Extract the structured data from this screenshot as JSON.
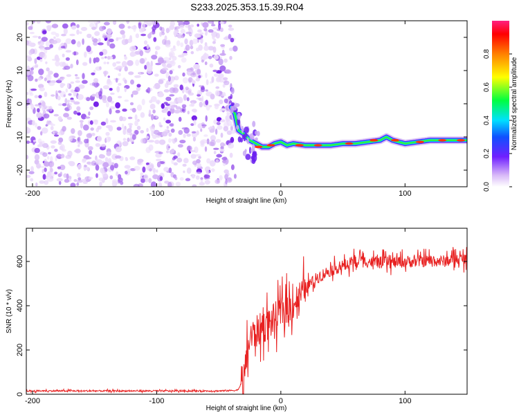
{
  "title": "S233.2025.353.15.39.R04",
  "chart_data": [
    {
      "type": "heatmap",
      "title": "S233.2025.353.15.39.R04",
      "xlabel": "Height of straight line (km)",
      "ylabel": "Frequency (Hz)",
      "xlim": [
        -205,
        150
      ],
      "ylim": [
        -25,
        25
      ],
      "xticks": [
        -200,
        -100,
        0,
        100
      ],
      "yticks": [
        -20,
        -10,
        0,
        10,
        20
      ],
      "noise_region_x": [
        -205,
        -40
      ],
      "signal_track": {
        "x": [
          -40,
          -37,
          -34,
          -30,
          -25,
          -20,
          -15,
          -10,
          -5,
          0,
          5,
          10,
          20,
          30,
          40,
          50,
          60,
          70,
          80,
          85,
          90,
          100,
          110,
          120,
          130,
          140,
          150
        ],
        "freq": [
          -1,
          -3,
          -8,
          -9,
          -11,
          -12,
          -13,
          -13,
          -12,
          -11.5,
          -12.5,
          -12,
          -12.5,
          -12.5,
          -12.5,
          -12,
          -12,
          -11.5,
          -11,
          -10,
          -11,
          -12,
          -11.5,
          -11,
          -11,
          -11,
          -11
        ]
      },
      "colorbar": {
        "label": "Normalized spectral amplitude",
        "range": [
          0,
          1
        ],
        "ticks": [
          "0.0",
          "0.2",
          "0.4",
          "0.6",
          "0.8"
        ],
        "ticks_numeric": [
          0,
          0.2,
          0.4,
          0.6,
          0.8
        ],
        "colors": [
          "#ffffff",
          "#c090f0",
          "#5a00ff",
          "#00e0ff",
          "#00ff40",
          "#ffff00",
          "#ff8000",
          "#ff0000",
          "#ff2080"
        ]
      }
    },
    {
      "type": "line",
      "xlabel": "Height of straight line (km)",
      "ylabel": "SNR (10 * v/v)",
      "xlim": [
        -205,
        150
      ],
      "ylim": [
        0,
        750
      ],
      "xticks": [
        -200,
        -100,
        0,
        100
      ],
      "yticks": [
        0,
        200,
        400,
        600
      ],
      "line_color": "#e82020",
      "series": [
        {
          "name": "SNR",
          "x": [
            -205,
            -150,
            -100,
            -50,
            -35,
            -30,
            -28,
            -25,
            -20,
            -15,
            -10,
            -5,
            0,
            5,
            10,
            15,
            20,
            30,
            40,
            50,
            60,
            70,
            80,
            90,
            100,
            110,
            120,
            130,
            140,
            150
          ],
          "y": [
            15,
            15,
            15,
            15,
            18,
            60,
            150,
            250,
            280,
            300,
            320,
            340,
            370,
            390,
            410,
            440,
            480,
            530,
            560,
            580,
            600,
            600,
            595,
            595,
            600,
            600,
            605,
            600,
            610,
            610
          ]
        }
      ]
    }
  ]
}
